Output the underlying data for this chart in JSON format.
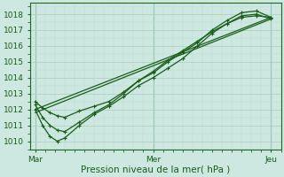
{
  "bg_color": "#cce8e0",
  "plot_bg_color": "#cce8e0",
  "grid_color_major": "#aaccbb",
  "grid_color_minor": "#bbddd0",
  "line_color": "#1a5c1a",
  "xlabel": "Pression niveau de la mer( hPa )",
  "xtick_labels": [
    "Mar",
    "Mer",
    "Jeu"
  ],
  "xtick_positions": [
    0,
    48,
    96
  ],
  "ylim": [
    1009.5,
    1018.7
  ],
  "yticks": [
    1010,
    1011,
    1012,
    1013,
    1014,
    1015,
    1016,
    1017,
    1018
  ],
  "xlim": [
    -2,
    100
  ],
  "series": [
    {
      "x": [
        0,
        96
      ],
      "y": [
        1012.0,
        1017.8
      ],
      "with_markers": false,
      "lw": 0.9
    },
    {
      "x": [
        0,
        96
      ],
      "y": [
        1011.8,
        1017.7
      ],
      "with_markers": false,
      "lw": 0.9
    },
    {
      "x": [
        0,
        3,
        6,
        9,
        12,
        18,
        24,
        30,
        36,
        42,
        48,
        54,
        60,
        66,
        72,
        78,
        84,
        90,
        96
      ],
      "y": [
        1012.3,
        1011.5,
        1011.0,
        1010.7,
        1010.6,
        1011.2,
        1011.8,
        1012.3,
        1013.0,
        1013.8,
        1014.3,
        1015.0,
        1015.6,
        1016.2,
        1017.0,
        1017.6,
        1018.1,
        1018.2,
        1017.8
      ],
      "with_markers": true,
      "lw": 0.9
    },
    {
      "x": [
        0,
        3,
        6,
        9,
        12,
        18,
        24,
        30,
        36,
        42,
        48,
        54,
        60,
        66,
        72,
        78,
        84,
        90,
        96
      ],
      "y": [
        1012.0,
        1011.0,
        1010.3,
        1010.0,
        1010.2,
        1011.0,
        1011.7,
        1012.2,
        1012.8,
        1013.5,
        1014.0,
        1014.6,
        1015.2,
        1016.0,
        1016.8,
        1017.4,
        1017.9,
        1018.0,
        1017.7
      ],
      "with_markers": true,
      "lw": 0.9
    },
    {
      "x": [
        0,
        3,
        6,
        9,
        12,
        18,
        24,
        30,
        36,
        42,
        48,
        54,
        60,
        66,
        72,
        78,
        84,
        90,
        96
      ],
      "y": [
        1012.5,
        1012.1,
        1011.8,
        1011.6,
        1011.5,
        1011.9,
        1012.2,
        1012.5,
        1013.1,
        1013.8,
        1014.4,
        1015.1,
        1015.7,
        1016.3,
        1016.9,
        1017.4,
        1017.8,
        1017.9,
        1017.8
      ],
      "with_markers": true,
      "lw": 0.9
    }
  ]
}
